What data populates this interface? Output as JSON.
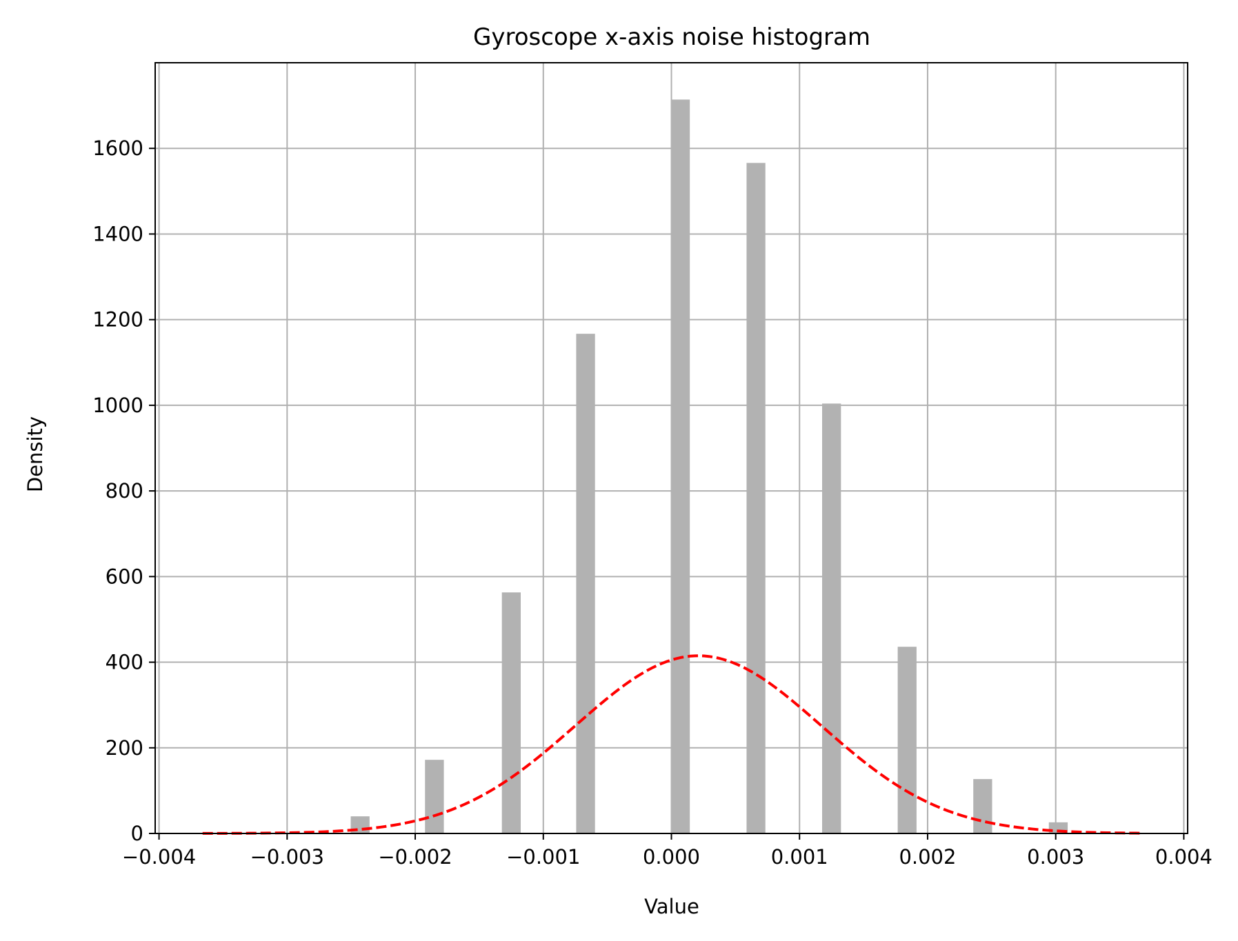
{
  "chart_data": {
    "type": "bar",
    "title": "Gyroscope x-axis noise histogram",
    "xlabel": "Value",
    "ylabel": "Density",
    "xlim": [
      -0.00403,
      0.00403
    ],
    "ylim": [
      0,
      1800
    ],
    "xticks": [
      -0.004,
      -0.003,
      -0.002,
      -0.001,
      0.0,
      0.001,
      0.002,
      0.003,
      0.004
    ],
    "xtick_labels": [
      "−0.004",
      "−0.003",
      "−0.002",
      "−0.001",
      "0.000",
      "0.001",
      "0.002",
      "0.003",
      "0.004"
    ],
    "yticks": [
      0,
      200,
      400,
      600,
      800,
      1000,
      1200,
      1400,
      1600
    ],
    "ytick_labels": [
      "0",
      "200",
      "400",
      "600",
      "800",
      "1000",
      "1200",
      "1400",
      "1600"
    ],
    "grid": true,
    "bin_width": 0.000147,
    "bars": [
      {
        "x": -0.00243,
        "value": 40
      },
      {
        "x": -0.00185,
        "value": 172
      },
      {
        "x": -0.00125,
        "value": 563
      },
      {
        "x": -0.00067,
        "value": 1167
      },
      {
        "x": 7e-05,
        "value": 1714
      },
      {
        "x": 0.00066,
        "value": 1566
      },
      {
        "x": 0.00125,
        "value": 1004
      },
      {
        "x": 0.00184,
        "value": 436
      },
      {
        "x": 0.00243,
        "value": 127
      },
      {
        "x": 0.00302,
        "value": 26
      }
    ],
    "fit_curve": {
      "style": "dashed",
      "mean": 0.00021,
      "std": 0.00096,
      "x_range": [
        -0.00366,
        0.00366
      ],
      "peak": 415
    },
    "colors": {
      "bars": "#b2b2b2",
      "curve": "#ff0000",
      "grid": "#b0b0b0",
      "axes": "#000000"
    }
  }
}
